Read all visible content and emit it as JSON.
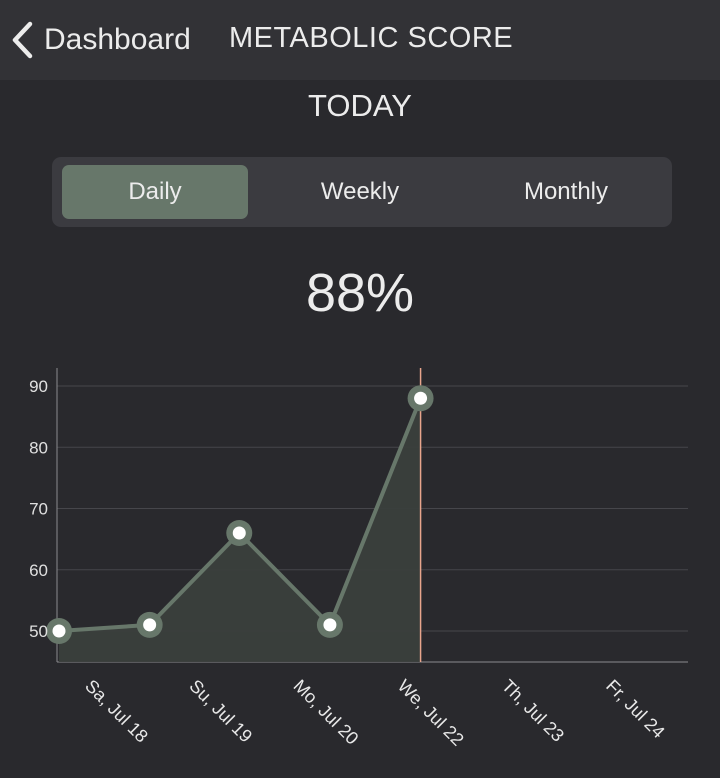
{
  "nav": {
    "back_label": "Dashboard",
    "title": "METABOLIC SCORE"
  },
  "period_title": "TODAY",
  "segments": [
    {
      "label": "Daily",
      "active": true
    },
    {
      "label": "Weekly",
      "active": false
    },
    {
      "label": "Monthly",
      "active": false
    }
  ],
  "score": "88%",
  "colors": {
    "background": "#29292d",
    "nav_background": "#323236",
    "accent": "#67776a",
    "today_marker": "#e8a58c"
  },
  "icons": {
    "back": "chevron-left-icon"
  },
  "chart_data": {
    "type": "area",
    "categories": [
      "Sa, Jul 18",
      "Su, Jul 19",
      "Mo, Jul 20",
      "We, Jul 22",
      "Th, Jul 23",
      "Fr, Jul 24"
    ],
    "points": [
      {
        "x_index": 0,
        "y": 50
      },
      {
        "x_index": 0.87,
        "y": 51
      },
      {
        "x_index": 1.73,
        "y": 66
      },
      {
        "x_index": 2.6,
        "y": 51
      },
      {
        "x_index": 3.47,
        "y": 88
      }
    ],
    "today_index": 3.47,
    "y_ticks": [
      50,
      60,
      70,
      80,
      90
    ],
    "ylim": [
      45,
      92
    ],
    "grid": true,
    "legend": "none"
  }
}
